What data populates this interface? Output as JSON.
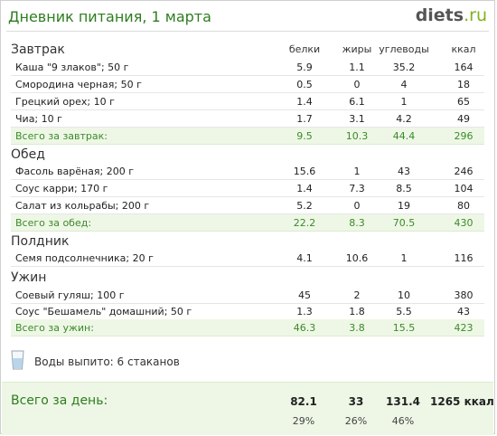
{
  "header": {
    "title": "Дневник питания, 1 марта",
    "logo_main": "diets",
    "logo_tld": ".ru"
  },
  "columns": {
    "protein": "белки",
    "fat": "жиры",
    "carbs": "углеводы",
    "kcal": "ккал"
  },
  "meals": [
    {
      "title": "Завтрак",
      "items": [
        {
          "name": "Каша \"9 злаков\"; 50 г",
          "protein": "5.9",
          "fat": "1.1",
          "carbs": "35.2",
          "kcal": "164"
        },
        {
          "name": "Смородина черная; 50 г",
          "protein": "0.5",
          "fat": "0",
          "carbs": "4",
          "kcal": "18"
        },
        {
          "name": "Грецкий орех; 10 г",
          "protein": "1.4",
          "fat": "6.1",
          "carbs": "1",
          "kcal": "65"
        },
        {
          "name": "Чиа; 10 г",
          "protein": "1.7",
          "fat": "3.1",
          "carbs": "4.2",
          "kcal": "49"
        }
      ],
      "total": {
        "label": "Всего за завтрак:",
        "protein": "9.5",
        "fat": "10.3",
        "carbs": "44.4",
        "kcal": "296"
      }
    },
    {
      "title": "Обед",
      "items": [
        {
          "name": "Фасоль варёная; 200 г",
          "protein": "15.6",
          "fat": "1",
          "carbs": "43",
          "kcal": "246"
        },
        {
          "name": "Соус карри; 170 г",
          "protein": "1.4",
          "fat": "7.3",
          "carbs": "8.5",
          "kcal": "104"
        },
        {
          "name": "Салат из кольрабы; 200 г",
          "protein": "5.2",
          "fat": "0",
          "carbs": "19",
          "kcal": "80"
        }
      ],
      "total": {
        "label": "Всего за обед:",
        "protein": "22.2",
        "fat": "8.3",
        "carbs": "70.5",
        "kcal": "430"
      }
    },
    {
      "title": "Полдник",
      "items": [
        {
          "name": "Семя подсолнечника; 20 г",
          "protein": "4.1",
          "fat": "10.6",
          "carbs": "1",
          "kcal": "116"
        }
      ]
    },
    {
      "title": "Ужин",
      "items": [
        {
          "name": "Соевый гуляш; 100 г",
          "protein": "45",
          "fat": "2",
          "carbs": "10",
          "kcal": "380"
        },
        {
          "name": "Соус \"Бешамель\" домашний; 50 г",
          "protein": "1.3",
          "fat": "1.8",
          "carbs": "5.5",
          "kcal": "43"
        }
      ],
      "total": {
        "label": "Всего за ужин:",
        "protein": "46.3",
        "fat": "3.8",
        "carbs": "15.5",
        "kcal": "423"
      }
    }
  ],
  "water": {
    "text": "Воды выпито: 6 стаканов",
    "icon": "water-glass-icon"
  },
  "day_total": {
    "label": "Всего за день:",
    "protein": "82.1",
    "fat": "33",
    "carbs": "131.4",
    "kcal": "1265 ккал",
    "protein_pct": "29%",
    "fat_pct": "26%",
    "carbs_pct": "46%"
  },
  "colors": {
    "accent_green": "#2e7d1e",
    "total_row_bg": "#eef7e6",
    "total_text": "#3c8a2a",
    "logo_tld": "#7fb21e"
  }
}
